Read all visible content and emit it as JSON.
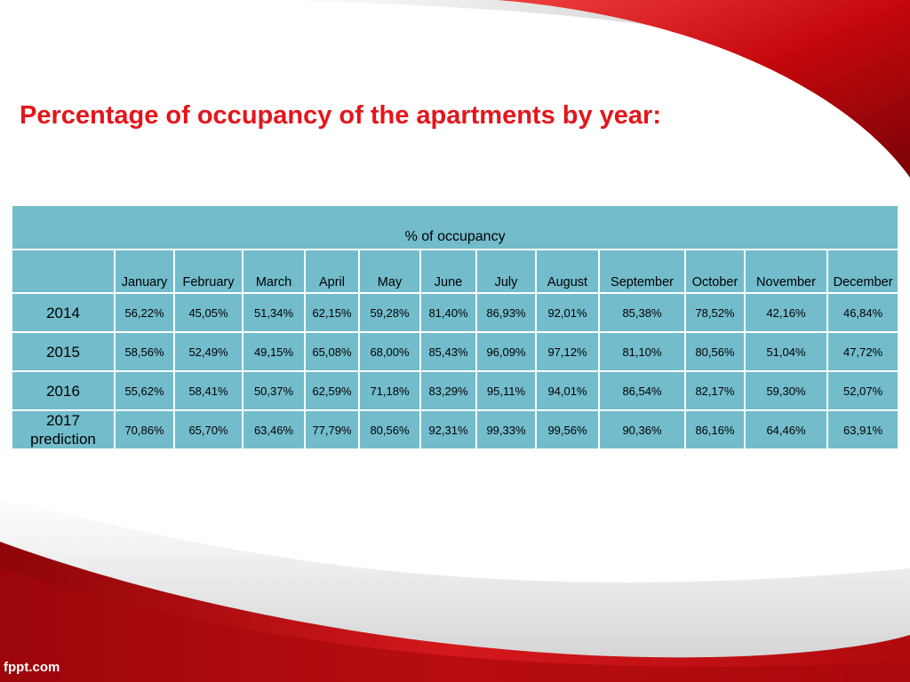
{
  "slide": {
    "title": "Percentage of occupancy of the apartments by year:",
    "footer": "fppt.com"
  },
  "colors": {
    "title": "#e3161b",
    "table_fill": "#72bccb",
    "accent_red": "#c00d12"
  },
  "table": {
    "caption": "% of occupancy",
    "months": [
      "January",
      "February",
      "March",
      "April",
      "May",
      "June",
      "July",
      "August",
      "September",
      "October",
      "November",
      "December"
    ],
    "rows": [
      {
        "year": "2014",
        "values": [
          "56,22%",
          "45,05%",
          "51,34%",
          "62,15%",
          "59,28%",
          "81,40%",
          "86,93%",
          "92,01%",
          "85,38%",
          "78,52%",
          "42,16%",
          "46,84%"
        ]
      },
      {
        "year": "2015",
        "values": [
          "58,56%",
          "52,49%",
          "49,15%",
          "65,08%",
          "68,00%",
          "85,43%",
          "96,09%",
          "97,12%",
          "81,10%",
          "80,56%",
          "51,04%",
          "47,72%"
        ]
      },
      {
        "year": "2016",
        "values": [
          "55,62%",
          "58,41%",
          "50,37%",
          "62,59%",
          "71,18%",
          "83,29%",
          "95,11%",
          "94,01%",
          "86,54%",
          "82,17%",
          "59,30%",
          "52,07%"
        ]
      },
      {
        "year": "2017 prediction",
        "values": [
          "70,86%",
          "65,70%",
          "63,46%",
          "77,79%",
          "80,56%",
          "92,31%",
          "99,33%",
          "99,56%",
          "90,36%",
          "86,16%",
          "64,46%",
          "63,91%"
        ]
      }
    ]
  }
}
